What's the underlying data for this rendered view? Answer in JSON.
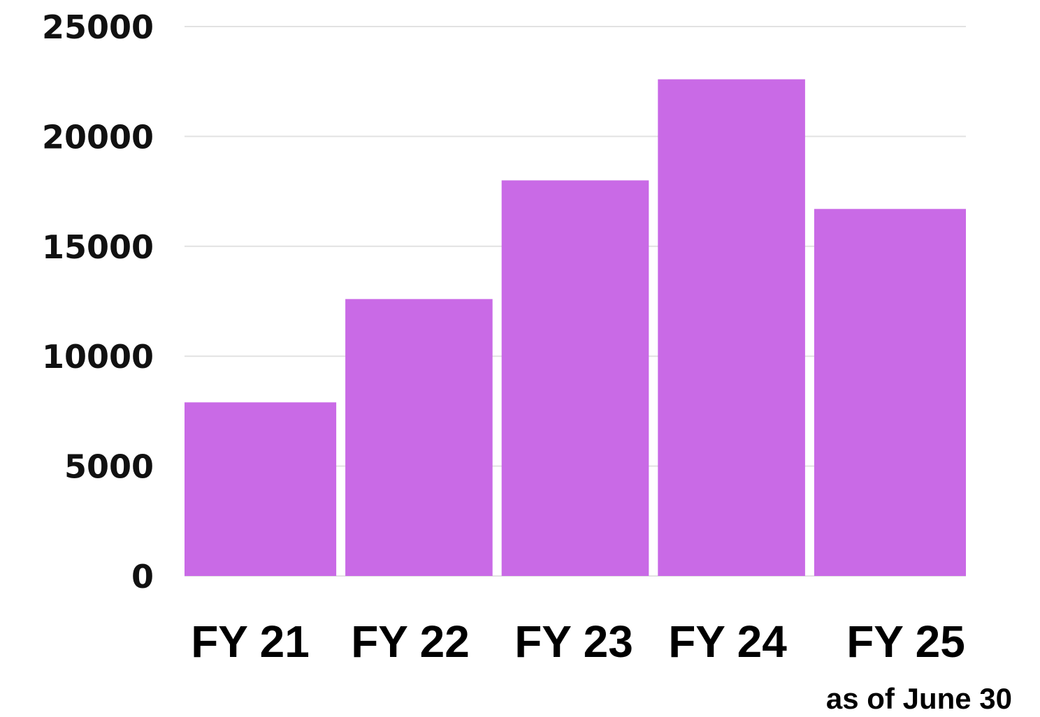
{
  "chart_data": {
    "type": "bar",
    "categories": [
      "FY 21",
      "FY 22",
      "FY 23",
      "FY 24",
      "FY 25"
    ],
    "values": [
      7900,
      12600,
      18000,
      22600,
      16700
    ],
    "ylim": [
      0,
      25000
    ],
    "yticks": [
      "0",
      "5000",
      "10000",
      "15000",
      "20000",
      "25000"
    ],
    "yticks_values": [
      0,
      5000,
      10000,
      15000,
      20000,
      25000
    ],
    "grid": true,
    "bar_color": "#c96ae6",
    "note": "as of June 30"
  }
}
